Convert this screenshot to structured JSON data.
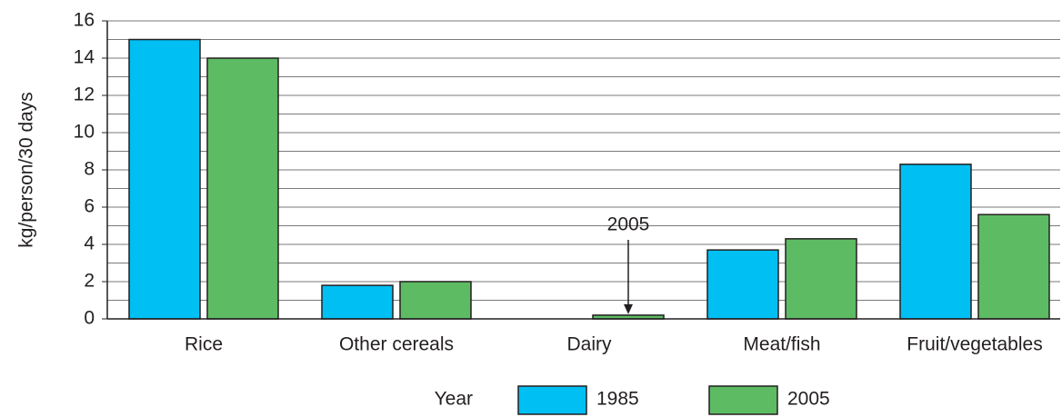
{
  "chart_data": {
    "type": "bar",
    "y_label": "kg/person/30 days",
    "categories": [
      "Rice",
      "Other cereals",
      "Dairy",
      "Meat/fish",
      "Fruit/vegetables"
    ],
    "series": [
      {
        "name": "1985",
        "color": "#00bff3",
        "values": [
          15,
          1.8,
          0,
          3.7,
          8.3
        ]
      },
      {
        "name": "2005",
        "color": "#5dbb63",
        "values": [
          14,
          2.0,
          0.2,
          4.3,
          5.6
        ]
      }
    ],
    "ylim": [
      0,
      16
    ],
    "yticks": [
      0,
      2,
      4,
      6,
      8,
      10,
      12,
      14,
      16
    ],
    "grid": true,
    "legend_title": "Year",
    "annotation": {
      "text": "2005",
      "category": 2,
      "series": 1
    }
  }
}
